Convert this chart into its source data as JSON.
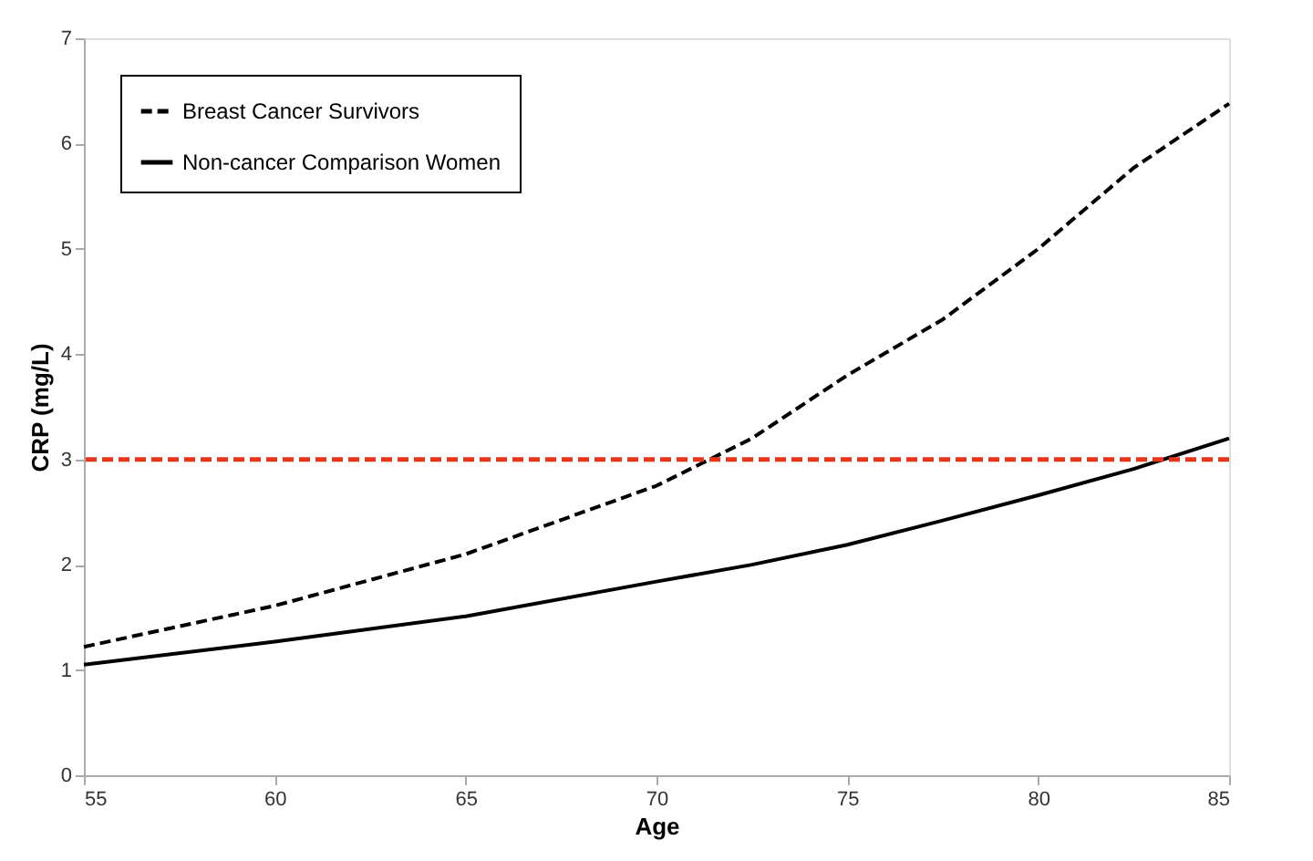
{
  "chart_data": {
    "type": "line",
    "xlabel": "Age",
    "ylabel": "CRP (mg/L)",
    "xlim": [
      55,
      85
    ],
    "xticks": [
      55,
      60,
      65,
      70,
      75,
      80,
      85
    ],
    "ylim": [
      0,
      7
    ],
    "yticks": [
      0,
      1,
      2,
      3,
      4,
      5,
      6,
      7
    ],
    "x": [
      55,
      60,
      65,
      70,
      72.5,
      75,
      77.5,
      80,
      82.5,
      85
    ],
    "series": [
      {
        "name": "Breast Cancer Survivors",
        "color": "#000000",
        "line_style": "dashed",
        "values": [
          1.22,
          1.61,
          2.1,
          2.75,
          3.2,
          3.8,
          4.33,
          5.0,
          5.77,
          6.38
        ]
      },
      {
        "name": "Non-cancer Comparison Women",
        "color": "#000000",
        "line_style": "solid",
        "values": [
          1.05,
          1.27,
          1.51,
          1.84,
          2.0,
          2.19,
          2.42,
          2.66,
          2.91,
          3.2
        ]
      }
    ],
    "ref_lines": [
      {
        "axis": "y",
        "value": 3,
        "color": "#e8361c",
        "line_style": "dashed"
      }
    ],
    "grid": false,
    "legend": "top left",
    "marker": "none"
  }
}
